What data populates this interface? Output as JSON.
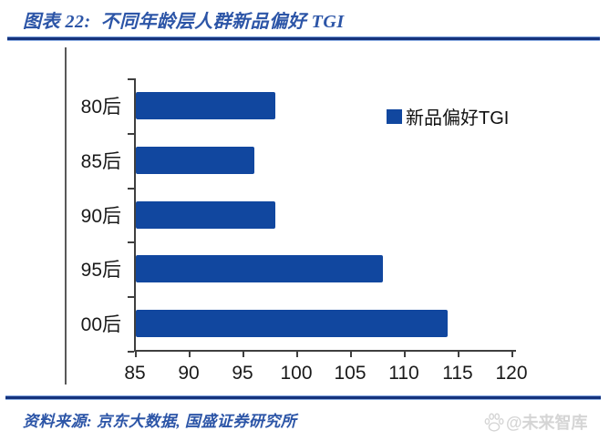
{
  "header": {
    "title": "图表 22:  不同年龄层人群新品偏好 TGI"
  },
  "legend": {
    "label": "新品偏好TGI",
    "swatch_color": "#11479F"
  },
  "chart_data": {
    "type": "bar",
    "orientation": "horizontal",
    "title": "不同年龄层人群新品偏好 TGI",
    "categories": [
      "80后",
      "85后",
      "90后",
      "95后",
      "00后"
    ],
    "series": [
      {
        "name": "新品偏好TGI",
        "values": [
          98,
          96,
          98,
          108,
          114
        ]
      }
    ],
    "xlim": [
      85,
      120
    ],
    "xticks": [
      "85",
      "90",
      "95",
      "100",
      "105",
      "110",
      "115",
      "120"
    ],
    "bar_color": "#11479F",
    "grid": false,
    "legend_position": "upper-right"
  },
  "footer": {
    "source": "资料来源: 京东大数据, 国盛证券研究所",
    "watermark": "@未来智库",
    "watermark_icon": "paw-icon"
  },
  "colors": {
    "bar": "#11479F",
    "accent_text": "#2C55A7",
    "rule_dark": "#16337C",
    "rule_light": "#7BA0DD",
    "axis": "#3F3F3F",
    "tick_text": "#1A1A1A",
    "watermark": "#D5D5D5"
  }
}
